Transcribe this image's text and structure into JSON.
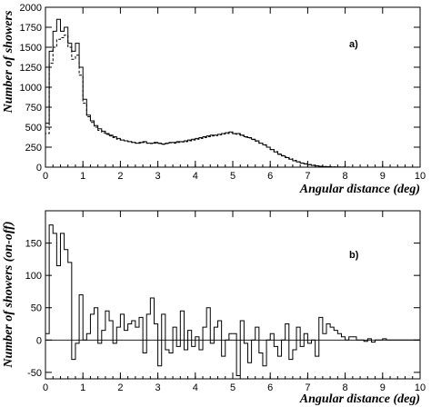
{
  "chart_data": [
    {
      "type": "histogram",
      "panel_label": "a)",
      "xlabel": "Angular distance (deg)",
      "ylabel": "Number of showers",
      "xlim": [
        0,
        10
      ],
      "ylim": [
        0,
        2000
      ],
      "xticks": [
        0,
        1,
        2,
        3,
        4,
        5,
        6,
        7,
        8,
        9,
        10
      ],
      "yticks": [
        0,
        250,
        500,
        750,
        1000,
        1250,
        1500,
        1750,
        2000
      ],
      "bin_width": 0.1,
      "series": [
        {
          "style": "solid",
          "values": [
            550,
            1450,
            1700,
            1850,
            1700,
            1750,
            1550,
            1450,
            1550,
            1250,
            850,
            650,
            580,
            520,
            480,
            450,
            420,
            400,
            380,
            360,
            340,
            330,
            320,
            310,
            300,
            310,
            320,
            300,
            300,
            310,
            300,
            290,
            300,
            310,
            310,
            320,
            320,
            330,
            340,
            350,
            360,
            370,
            380,
            390,
            400,
            400,
            410,
            420,
            430,
            440,
            420,
            420,
            400,
            380,
            370,
            350,
            330,
            300,
            280,
            250,
            220,
            190,
            160,
            140,
            120,
            100,
            80,
            65,
            50,
            40,
            30,
            22,
            15,
            10,
            7,
            5,
            3,
            2,
            1,
            1,
            0,
            0,
            0,
            0,
            0,
            0,
            0,
            0,
            0,
            0,
            0,
            0,
            0,
            0,
            0,
            0,
            0,
            0,
            0,
            0
          ]
        },
        {
          "style": "dashed",
          "values": [
            420,
            1300,
            1500,
            1600,
            1620,
            1650,
            1500,
            1350,
            1400,
            1150,
            800,
            630,
            560,
            500,
            460,
            430,
            410,
            390,
            370,
            350,
            340,
            330,
            320,
            310,
            300,
            300,
            310,
            300,
            295,
            300,
            295,
            285,
            295,
            305,
            300,
            310,
            315,
            320,
            330,
            340,
            350,
            360,
            370,
            380,
            390,
            395,
            405,
            415,
            420,
            430,
            415,
            410,
            395,
            375,
            365,
            345,
            325,
            300,
            275,
            250,
            220,
            195,
            165,
            145,
            125,
            105,
            85,
            68,
            52,
            42,
            32,
            24,
            17,
            12,
            8,
            6,
            4,
            3,
            2,
            1,
            1,
            0,
            0,
            0,
            0,
            0,
            0,
            0,
            0,
            0,
            0,
            0,
            0,
            0,
            0,
            0,
            0,
            0,
            0,
            0
          ]
        }
      ]
    },
    {
      "type": "histogram",
      "panel_label": "b)",
      "xlabel": "Angular distance (deg)",
      "ylabel": "Number of showers (on-off)",
      "xlim": [
        0,
        10
      ],
      "ylim": [
        -60,
        200
      ],
      "xticks": [
        0,
        1,
        2,
        3,
        4,
        5,
        6,
        7,
        8,
        9,
        10
      ],
      "yticks": [
        -50,
        0,
        50,
        100,
        150
      ],
      "bin_width": 0.1,
      "series": [
        {
          "style": "solid",
          "values": [
            10,
            178,
            165,
            115,
            165,
            140,
            120,
            -30,
            -5,
            70,
            0,
            10,
            40,
            50,
            -5,
            15,
            45,
            30,
            -5,
            20,
            40,
            15,
            25,
            30,
            20,
            35,
            -20,
            40,
            65,
            25,
            -40,
            40,
            -15,
            -20,
            20,
            -10,
            45,
            -15,
            15,
            -10,
            5,
            -15,
            20,
            50,
            -5,
            20,
            30,
            -25,
            0,
            10,
            10,
            -55,
            30,
            -5,
            -35,
            0,
            20,
            -20,
            -40,
            0,
            10,
            -10,
            -25,
            0,
            25,
            -30,
            -15,
            20,
            -10,
            10,
            -5,
            0,
            -25,
            35,
            10,
            25,
            20,
            15,
            10,
            5,
            0,
            5,
            5,
            0,
            0,
            -2,
            2,
            -3,
            0,
            0,
            2,
            0,
            0,
            0,
            0,
            0,
            0,
            0,
            0,
            0
          ]
        }
      ]
    }
  ]
}
